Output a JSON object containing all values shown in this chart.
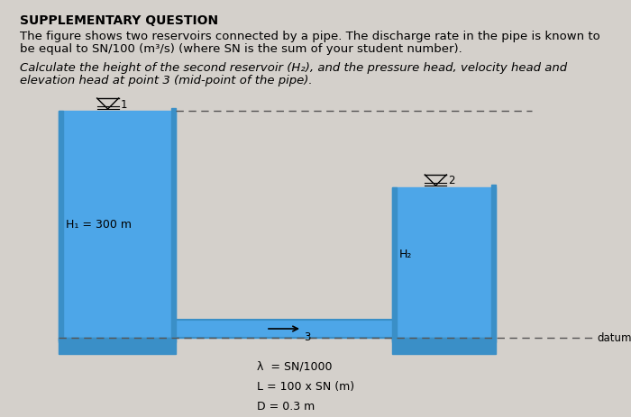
{
  "bg_color": "#d4d0cb",
  "water_color": "#4da6e8",
  "water_dark": "#3a8fc7",
  "line_color": "#555555",
  "title": "SUPPLEMENTARY QUESTION",
  "para1_line1": "The figure shows two reservoirs connected by a pipe. The discharge rate in the pipe is known to",
  "para1_line2": "be equal to SN/100 (m³/s) (where SN is the sum of your student number).",
  "para2_line1": "Calculate the height of the second reservoir (H₂), and the pressure head, velocity head and",
  "para2_line2": "elevation head at point 3 (mid-point of the pipe).",
  "label_h1": "H₁ = 300 m",
  "label_h2": "H₂",
  "label_datum": "datum",
  "label_lambda": "λ  = SN/1000",
  "label_L": "L = 100 x SN (m)",
  "label_D": "D = 0.3 m",
  "label_1": "1",
  "label_2": "2",
  "label_3": "3",
  "title_fontsize": 10,
  "body_fontsize": 9.5,
  "italic_fontsize": 9.5,
  "small_fontsize": 8.5
}
